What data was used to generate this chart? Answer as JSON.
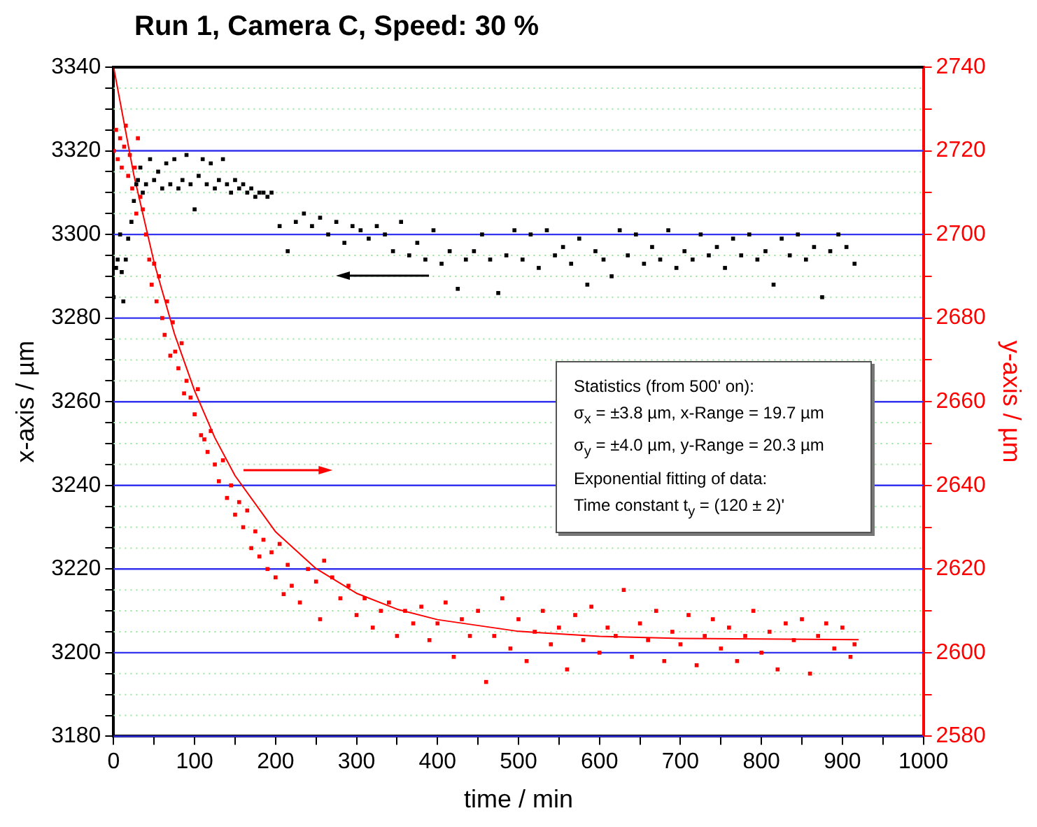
{
  "chart_data": {
    "type": "scatter",
    "title": "Run 1, Camera C, Speed: 30 %",
    "xlabel": "time / min",
    "ylabel": "x-axis / µm",
    "y2label": "y-axis / µm",
    "xlim": [
      0,
      1000
    ],
    "xticks": [
      0,
      {
        "value": 50,
        "label": null
      },
      100,
      {
        "value": 150,
        "label": null
      },
      200,
      {
        "value": 250,
        "label": null
      },
      300,
      {
        "value": 350,
        "label": null
      },
      400,
      {
        "value": 450,
        "label": null
      },
      500,
      {
        "value": 550,
        "label": null
      },
      600,
      {
        "value": 650,
        "label": null
      },
      700,
      {
        "value": 750,
        "label": null
      },
      800,
      {
        "value": 850,
        "label": null
      },
      900,
      {
        "value": 950,
        "label": null
      },
      1000
    ],
    "ylim": [
      3180,
      3340
    ],
    "yticks": [
      3180,
      {
        "value": 3185,
        "label": null
      },
      {
        "value": 3190,
        "label": null
      },
      {
        "value": 3195,
        "label": null
      },
      3200,
      {
        "value": 3205,
        "label": null
      },
      {
        "value": 3210,
        "label": null
      },
      {
        "value": 3215,
        "label": null
      },
      3220,
      {
        "value": 3225,
        "label": null
      },
      {
        "value": 3230,
        "label": null
      },
      {
        "value": 3235,
        "label": null
      },
      3240,
      {
        "value": 3245,
        "label": null
      },
      {
        "value": 3250,
        "label": null
      },
      {
        "value": 3255,
        "label": null
      },
      3260,
      {
        "value": 3265,
        "label": null
      },
      {
        "value": 3270,
        "label": null
      },
      {
        "value": 3275,
        "label": null
      },
      3280,
      {
        "value": 3285,
        "label": null
      },
      {
        "value": 3290,
        "label": null
      },
      {
        "value": 3295,
        "label": null
      },
      3300,
      {
        "value": 3305,
        "label": null
      },
      {
        "value": 3310,
        "label": null
      },
      {
        "value": 3315,
        "label": null
      },
      3320,
      {
        "value": 3325,
        "label": null
      },
      {
        "value": 3330,
        "label": null
      },
      {
        "value": 3335,
        "label": null
      },
      3340
    ],
    "y2lim": [
      2580,
      2740
    ],
    "y2ticks": [
      2580,
      {
        "value": 2590,
        "label": null
      },
      2600,
      {
        "value": 2610,
        "label": null
      },
      2620,
      {
        "value": 2630,
        "label": null
      },
      2640,
      {
        "value": 2650,
        "label": null
      },
      2660,
      {
        "value": 2670,
        "label": null
      },
      2680,
      {
        "value": 2690,
        "label": null
      },
      2700,
      {
        "value": 2710,
        "label": null
      },
      2720,
      {
        "value": 2730,
        "label": null
      },
      2740
    ],
    "grid": "y",
    "legend": false,
    "marker": "square",
    "annotations": [
      "Statistics (from 500' on):",
      "σ$_{x}$ = ±3.8 µm, x-Range = 19.7 µm",
      "σ$_{y}$ = ±4.0 µm, y-Range = 20.3 µm",
      "Exponential fitting of data:",
      "Time constant t$_{y}$ = (120 ± 2)'"
    ],
    "series": [
      {
        "type": "scatter",
        "color": "#000000",
        "x": [
          0,
          3,
          5,
          8,
          10,
          12,
          15,
          18,
          22,
          25,
          28,
          30,
          33,
          36,
          40,
          45,
          50,
          55,
          60,
          65,
          70,
          75,
          80,
          85,
          90,
          95,
          100,
          105,
          110,
          115,
          120,
          125,
          130,
          135,
          140,
          145,
          150,
          155,
          160,
          165,
          170,
          175,
          180,
          185,
          190,
          195,
          205,
          215,
          225,
          235,
          245,
          255,
          265,
          275,
          285,
          295,
          305,
          315,
          325,
          335,
          345,
          355,
          365,
          375,
          385,
          395,
          405,
          415,
          425,
          435,
          445,
          455,
          465,
          475,
          485,
          495,
          505,
          515,
          525,
          535,
          545,
          555,
          565,
          575,
          585,
          595,
          605,
          615,
          625,
          635,
          645,
          655,
          665,
          675,
          685,
          695,
          705,
          715,
          725,
          735,
          745,
          755,
          765,
          775,
          785,
          795,
          805,
          815,
          825,
          835,
          845,
          855,
          865,
          875,
          885,
          895,
          905,
          915
        ],
        "values": [
          3285,
          3292,
          3294,
          3300,
          3291,
          3284,
          3294,
          3299,
          3303,
          3308,
          3312,
          3313,
          3316,
          3310,
          3312,
          3318,
          3313,
          3315,
          3311,
          3317,
          3312,
          3318,
          3311,
          3313,
          3319,
          3312,
          3306,
          3314,
          3318,
          3312,
          3317,
          3311,
          3313,
          3318,
          3312,
          3310,
          3313,
          3311,
          3312,
          3310,
          3311,
          3309,
          3310,
          3310,
          3309,
          3310,
          3302,
          3296,
          3303,
          3305,
          3302,
          3304,
          3300,
          3303,
          3298,
          3302,
          3301,
          3299,
          3302,
          3300,
          3296,
          3303,
          3295,
          3298,
          3294,
          3301,
          3293,
          3296,
          3287,
          3294,
          3296,
          3300,
          3294,
          3286,
          3295,
          3301,
          3294,
          3300,
          3292,
          3301,
          3295,
          3297,
          3293,
          3299,
          3288,
          3296,
          3294,
          3290,
          3301,
          3295,
          3300,
          3293,
          3297,
          3294,
          3301,
          3292,
          3296,
          3294,
          3300,
          3295,
          3297,
          3292,
          3299,
          3295,
          3300,
          3294,
          3296,
          3288,
          3299,
          3295,
          3300,
          3294,
          3297,
          3285,
          3296,
          3300,
          3297,
          3293
        ]
      },
      {
        "type": "scatter",
        "color": "#ff0000",
        "axis": "y2",
        "x": [
          0,
          3,
          5,
          8,
          10,
          13,
          15,
          18,
          20,
          23,
          26,
          28,
          30,
          33,
          36,
          40,
          44,
          47,
          50,
          53,
          56,
          60,
          63,
          66,
          70,
          73,
          76,
          80,
          84,
          87,
          90,
          95,
          100,
          104,
          108,
          112,
          116,
          120,
          125,
          130,
          135,
          140,
          145,
          150,
          155,
          160,
          165,
          170,
          175,
          180,
          185,
          190,
          195,
          200,
          205,
          210,
          215,
          220,
          230,
          240,
          250,
          255,
          260,
          270,
          280,
          290,
          300,
          310,
          320,
          330,
          340,
          350,
          360,
          370,
          380,
          390,
          400,
          410,
          420,
          430,
          440,
          450,
          460,
          470,
          480,
          490,
          500,
          510,
          520,
          530,
          540,
          550,
          560,
          570,
          580,
          590,
          600,
          610,
          620,
          630,
          640,
          650,
          660,
          670,
          680,
          690,
          700,
          710,
          720,
          730,
          740,
          750,
          760,
          770,
          780,
          790,
          800,
          810,
          820,
          830,
          840,
          850,
          860,
          870,
          880,
          890,
          900,
          910,
          915
        ],
        "values": [
          2720,
          2725,
          2718,
          2723,
          2716,
          2721,
          2726,
          2714,
          2719,
          2711,
          2716,
          2705,
          2723,
          2709,
          2706,
          2700,
          2694,
          2688,
          2693,
          2684,
          2690,
          2680,
          2676,
          2684,
          2671,
          2679,
          2672,
          2668,
          2674,
          2662,
          2665,
          2661,
          2657,
          2663,
          2652,
          2651,
          2648,
          2653,
          2645,
          2641,
          2646,
          2637,
          2640,
          2633,
          2636,
          2630,
          2634,
          2625,
          2629,
          2623,
          2627,
          2620,
          2624,
          2618,
          2626,
          2614,
          2621,
          2616,
          2612,
          2620,
          2617,
          2608,
          2622,
          2618,
          2613,
          2616,
          2609,
          2613,
          2606,
          2610,
          2612,
          2604,
          2610,
          2607,
          2611,
          2603,
          2607,
          2612,
          2599,
          2608,
          2604,
          2610,
          2593,
          2604,
          2613,
          2601,
          2608,
          2598,
          2605,
          2610,
          2602,
          2606,
          2596,
          2609,
          2603,
          2611,
          2600,
          2606,
          2604,
          2615,
          2599,
          2607,
          2603,
          2610,
          2598,
          2605,
          2602,
          2609,
          2597,
          2604,
          2608,
          2601,
          2606,
          2598,
          2604,
          2610,
          2600,
          2605,
          2596,
          2607,
          2603,
          2608,
          2595,
          2604,
          2607,
          2601,
          2606,
          2599,
          2602
        ]
      },
      {
        "type": "line",
        "color": "#ff0000",
        "axis": "y2",
        "marker": "none",
        "x": [
          0,
          25,
          50,
          75,
          100,
          125,
          150,
          200,
          250,
          300,
          350,
          400,
          500,
          600,
          700,
          920
        ],
        "values": [
          2740,
          2714.2,
          2693.3,
          2676.3,
          2662.6,
          2651.4,
          2642.3,
          2628.9,
          2620.1,
          2614.2,
          2610.4,
          2607.9,
          2605.1,
          2603.9,
          2603.4,
          2603.1
        ]
      }
    ]
  }
}
